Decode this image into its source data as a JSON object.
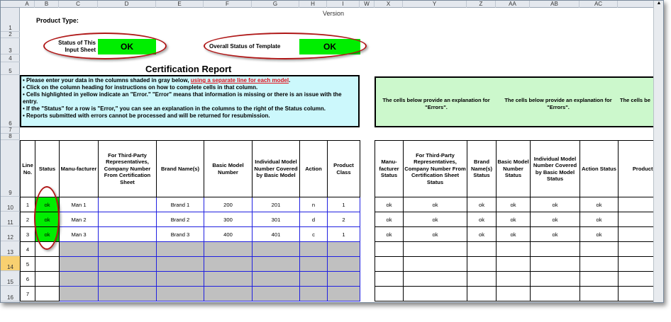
{
  "columns_left": [
    "A",
    "B",
    "C",
    "D",
    "E",
    "F",
    "G",
    "H",
    "I"
  ],
  "columns_right": [
    "W",
    "X",
    "Y",
    "Z",
    "AA",
    "AB",
    "AC"
  ],
  "rows": [
    "1",
    "2",
    "3",
    "4",
    "5",
    "6",
    "7",
    "8",
    "9",
    "10",
    "11",
    "12",
    "13",
    "14",
    "15",
    "16"
  ],
  "selected_row": "14",
  "top": {
    "product_type_label": "Product Type:",
    "version_label": "Version",
    "status_sheet_label_1": "Status of This",
    "status_sheet_label_2": "Input Sheet",
    "status_sheet_value": "OK",
    "overall_label": "Overall Status of Template",
    "overall_value": "OK",
    "title": "Certification Report"
  },
  "instructions": {
    "line1_a": "• Please enter your data in the columns shaded in gray below, ",
    "line1_link": "using a separate line for each model",
    "line1_b": ".",
    "line2": "• Click on the column heading for instructions on how to complete cells in that column.",
    "line3": "• Cells highlighted in yellow indicate an \"Error.\"  \"Error\" means that information is missing or there is an issue with the entry.",
    "line4": "• If the \"Status\" for a row is \"Error,\" you can see an explanation in the columns to the right of the Status column.",
    "line5": "• Reports submitted with errors cannot be processed and will be returned for resubmission."
  },
  "explanation": [
    "The cells below provide an explanation for \"Errors\".",
    "The cells below provide an explanation for \"Errors\".",
    "The cells be"
  ],
  "table": {
    "headers": [
      "Line No.",
      "Status",
      "Manu-facturer",
      "For Third-Party Representatives, Company Number From Certification Sheet",
      "Brand Name(s)",
      "Basic Model Number",
      "Individual Model Number Covered by Basic Model",
      "Action",
      "Product Class"
    ],
    "rows": [
      {
        "line": "1",
        "status": "ok",
        "cells": [
          "Man 1",
          "",
          "Brand 1",
          "200",
          "201",
          "n",
          "1"
        ]
      },
      {
        "line": "2",
        "status": "ok",
        "cells": [
          "Man 2",
          "",
          "Brand 2",
          "300",
          "301",
          "d",
          "2"
        ]
      },
      {
        "line": "3",
        "status": "ok",
        "cells": [
          "Man 3",
          "",
          "Brand 3",
          "400",
          "401",
          "c",
          "1"
        ]
      },
      {
        "line": "4",
        "status": "",
        "cells": [
          "",
          "",
          "",
          "",
          "",
          "",
          ""
        ]
      },
      {
        "line": "5",
        "status": "",
        "cells": [
          "",
          "",
          "",
          "",
          "",
          "",
          ""
        ]
      },
      {
        "line": "6",
        "status": "",
        "cells": [
          "",
          "",
          "",
          "",
          "",
          "",
          ""
        ]
      },
      {
        "line": "7",
        "status": "",
        "cells": [
          "",
          "",
          "",
          "",
          "",
          "",
          ""
        ]
      }
    ]
  },
  "status_table": {
    "headers": [
      "Manu-facturer Status",
      "For Third-Party Representatives, Company Number From Certification Sheet Status",
      "Brand Name(s) Status",
      "Basic Model Number Status",
      "Individual Model Number Covered by Basic Model Status",
      "Action Status",
      "Product C"
    ],
    "rows": [
      [
        "ok",
        "ok",
        "ok",
        "ok",
        "ok",
        "ok",
        ""
      ],
      [
        "ok",
        "ok",
        "ok",
        "ok",
        "ok",
        "ok",
        ""
      ],
      [
        "ok",
        "ok",
        "ok",
        "ok",
        "ok",
        "ok",
        ""
      ],
      [
        "",
        "",
        "",
        "",
        "",
        "",
        ""
      ],
      [
        "",
        "",
        "",
        "",
        "",
        "",
        ""
      ],
      [
        "",
        "",
        "",
        "",
        "",
        "",
        ""
      ],
      [
        "",
        "",
        "",
        "",
        "",
        "",
        ""
      ]
    ]
  },
  "colors": {
    "ok_green": "#00ee00",
    "instructions_bg": "#ccf8fc",
    "explanation_bg": "#ccf8cc",
    "input_gray": "#c0c0c0",
    "input_border": "#2020e0",
    "annotation_oval": "#b01818"
  }
}
